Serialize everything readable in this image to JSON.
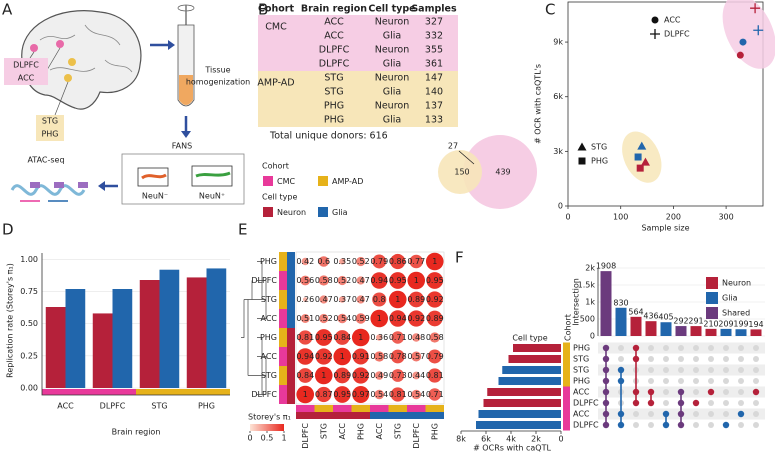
{
  "panels": [
    "A",
    "B",
    "C",
    "D",
    "E",
    "F"
  ],
  "panel_a": {
    "regions_top": [
      "DLPFC",
      "ACC"
    ],
    "regions_bottom": [
      "STG",
      "PHG"
    ],
    "tissue": [
      "Tissue",
      "homogenization"
    ],
    "fans": "FANS",
    "atac": "ATAC-seq",
    "gates": [
      "NeuN⁻",
      "NeuN⁺"
    ]
  },
  "panel_b": {
    "header": [
      "Cohort",
      "Brain region",
      "Cell type",
      "Samples"
    ],
    "groups": [
      {
        "cohort": "CMC",
        "color": "#f6cde4",
        "rows": [
          [
            "ACC",
            "Neuron",
            327
          ],
          [
            "ACC",
            "Glia",
            332
          ],
          [
            "DLPFC",
            "Neuron",
            355
          ],
          [
            "DLPFC",
            "Glia",
            361
          ]
        ]
      },
      {
        "cohort": "AMP-AD",
        "color": "#f7e6b9",
        "rows": [
          [
            "STG",
            "Neuron",
            147
          ],
          [
            "STG",
            "Glia",
            140
          ],
          [
            "PHG",
            "Neuron",
            137
          ],
          [
            "PHG",
            "Glia",
            133
          ]
        ]
      }
    ],
    "total": "Total unique donors: 616",
    "venn": {
      "values": [
        150,
        27,
        439
      ],
      "colors": [
        "#f7e6b9",
        "#f6cde4"
      ]
    },
    "legend": {
      "cohort_title": "Cohort",
      "cohort": [
        {
          "name": "CMC",
          "color": "#e8399a"
        },
        {
          "name": "AMP-AD",
          "color": "#e6b21a"
        }
      ],
      "cell_title": "Cell type",
      "cell": [
        {
          "name": "Neuron",
          "color": "#b5213a"
        },
        {
          "name": "Glia",
          "color": "#2166ac"
        }
      ]
    }
  },
  "chart_data": [
    {
      "type": "scatter",
      "xlabel": "Sample size",
      "ylabel": "# OCR with caQTL's",
      "xlim": [
        0,
        370
      ],
      "ylim": [
        0,
        11200
      ],
      "xticks": [
        0,
        100,
        200,
        300
      ],
      "yticks": [
        0,
        {
          "value": 3000,
          "label": "3k"
        },
        {
          "value": 6000,
          "label": "6k"
        },
        {
          "value": 9000,
          "label": "9k"
        }
      ],
      "series": [
        {
          "name": "ACC",
          "marker": "circle",
          "cohort_color": "#f6cde4",
          "x": [
            327,
            332
          ],
          "values": [
            8280,
            9000
          ],
          "colors": [
            "#b5213a",
            "#2166ac"
          ]
        },
        {
          "name": "DLPFC",
          "marker": "plus",
          "cohort_color": "#f6cde4",
          "x": [
            355,
            361
          ],
          "values": [
            10860,
            9650
          ],
          "colors": [
            "#b5213a",
            "#2166ac"
          ]
        },
        {
          "name": "STG",
          "marker": "triangle",
          "cohort_color": "#f7e6b9",
          "x": [
            147,
            140
          ],
          "values": [
            2410,
            3290
          ],
          "colors": [
            "#b5213a",
            "#2166ac"
          ]
        },
        {
          "name": "PHG",
          "marker": "square",
          "cohort_color": "#f7e6b9",
          "x": [
            137,
            133
          ],
          "values": [
            2080,
            2690
          ],
          "colors": [
            "#b5213a",
            "#2166ac"
          ]
        }
      ]
    },
    {
      "type": "bar",
      "xlabel": "Brain region",
      "ylabel": "Replication rate (Storey's π₁)",
      "categories": [
        "ACC",
        "DLPFC",
        "STG",
        "PHG"
      ],
      "cohort_colors": [
        "#e8399a",
        "#e8399a",
        "#e6b21a",
        "#e6b21a"
      ],
      "ylim": [
        0,
        1.05
      ],
      "yticks": [
        {
          "value": 0,
          "label": "0.00"
        },
        {
          "value": 0.25,
          "label": "0.25"
        },
        {
          "value": 0.5,
          "label": "0.50"
        },
        {
          "value": 0.75,
          "label": "0.75"
        },
        {
          "value": 1,
          "label": "1.00"
        }
      ],
      "series": [
        {
          "color": "#b5213a",
          "values": [
            0.63,
            0.58,
            0.84,
            0.86
          ]
        },
        {
          "color": "#2166ac",
          "values": [
            0.77,
            0.77,
            0.92,
            0.93
          ]
        }
      ]
    },
    {
      "type": "heatmap",
      "rows": [
        "PHG",
        "DLPFC",
        "STG",
        "ACC",
        "PHG",
        "ACC",
        "STG",
        "DLPFC"
      ],
      "columns": [
        "DLPFC",
        "STG",
        "ACC",
        "PHG",
        "ACC",
        "STG",
        "DLPFC",
        "PHG"
      ],
      "values": [
        [
          0.42,
          0.6,
          0.35,
          0.52,
          0.79,
          0.86,
          0.77,
          1
        ],
        [
          0.56,
          0.58,
          0.52,
          0.47,
          0.94,
          0.95,
          1,
          0.95
        ],
        [
          0.26,
          0.47,
          0.37,
          0.47,
          0.8,
          1,
          0.89,
          0.92
        ],
        [
          0.51,
          0.52,
          0.54,
          0.59,
          1,
          0.94,
          0.92,
          0.89
        ],
        [
          0.81,
          0.95,
          0.84,
          1,
          0.36,
          0.71,
          0.48,
          0.58
        ],
        [
          0.94,
          0.92,
          1,
          0.91,
          0.58,
          0.78,
          0.57,
          0.79
        ],
        [
          0.84,
          1,
          0.89,
          0.92,
          0.49,
          0.73,
          0.44,
          0.81
        ],
        [
          1,
          0.87,
          0.95,
          0.97,
          0.54,
          0.81,
          0.54,
          0.71
        ]
      ],
      "row_cohort_colors": [
        "#e6b21a",
        "#e8399a",
        "#e6b21a",
        "#e8399a",
        "#e6b21a",
        "#e8399a",
        "#e6b21a",
        "#e8399a"
      ],
      "row_cell_colors": [
        "#2166ac",
        "#2166ac",
        "#2166ac",
        "#2166ac",
        "#b5213a",
        "#b5213a",
        "#b5213a",
        "#b5213a"
      ],
      "col_cohort_colors": [
        "#e8399a",
        "#e6b21a",
        "#e8399a",
        "#e6b21a",
        "#e8399a",
        "#e6b21a",
        "#e8399a",
        "#e6b21a"
      ],
      "col_cell_colors": [
        "#b5213a",
        "#b5213a",
        "#b5213a",
        "#b5213a",
        "#2166ac",
        "#2166ac",
        "#2166ac",
        "#2166ac"
      ],
      "legend_title": "Storey's π₁",
      "vlim": [
        0,
        1
      ],
      "colorbar_ticks": [
        0,
        0.5,
        1
      ],
      "colors": [
        "#fde3d5",
        "#e8281f"
      ]
    },
    {
      "type": "upset",
      "ylabel": "Intersection",
      "ylim": [
        0,
        2000
      ],
      "yticks": [
        0,
        500,
        {
          "value": 1000,
          "label": "1k"
        },
        {
          "value": 1500,
          "label": "1.5k"
        },
        {
          "value": 2000,
          "label": "2k"
        }
      ],
      "intersections": {
        "values": [
          1908,
          830,
          564,
          436,
          405,
          292,
          291,
          210,
          209,
          199,
          194
        ],
        "colors": [
          "#6b3a7d",
          "#2166ac",
          "#b5213a",
          "#b5213a",
          "#2166ac",
          "#6b3a7d",
          "#b5213a",
          "#b5213a",
          "#2166ac",
          "#2166ac",
          "#b5213a"
        ],
        "members": [
          [
            0,
            1,
            2,
            3,
            4,
            5,
            6,
            7
          ],
          [
            2,
            3,
            6,
            7
          ],
          [
            0,
            1,
            4,
            5
          ],
          [
            4,
            5
          ],
          [
            6,
            7
          ],
          [
            4,
            5,
            6,
            7
          ],
          [
            5
          ],
          [
            4
          ],
          [
            7
          ],
          [
            6
          ],
          [
            4
          ]
        ]
      },
      "sets": {
        "title": "Cell type",
        "cohort_title": "Cohort",
        "names": [
          "PHG",
          "STG",
          "STG",
          "PHG",
          "ACC",
          "DLPFC",
          "ACC",
          "DLPFC"
        ],
        "values": [
          3840,
          4200,
          4700,
          5000,
          5900,
          6200,
          6600,
          6800
        ],
        "colors": [
          "#b5213a",
          "#b5213a",
          "#2166ac",
          "#2166ac",
          "#b5213a",
          "#b5213a",
          "#2166ac",
          "#2166ac"
        ],
        "cohort_colors": [
          "#e6b21a",
          "#e6b21a",
          "#e6b21a",
          "#e6b21a",
          "#e8399a",
          "#e8399a",
          "#e8399a",
          "#e8399a"
        ]
      },
      "xlabel": "# OCRs with caQTL",
      "xlim": [
        0,
        8000
      ],
      "xticks": [
        {
          "value": 8000,
          "label": "8k"
        },
        {
          "value": 6000,
          "label": "6k"
        },
        {
          "value": 4000,
          "label": "4k"
        },
        {
          "value": 2000,
          "label": "2k"
        },
        0
      ],
      "legend": [
        {
          "name": "Neuron",
          "color": "#b5213a"
        },
        {
          "name": "Glia",
          "color": "#2166ac"
        },
        {
          "name": "Shared",
          "color": "#6b3a7d"
        }
      ]
    }
  ]
}
